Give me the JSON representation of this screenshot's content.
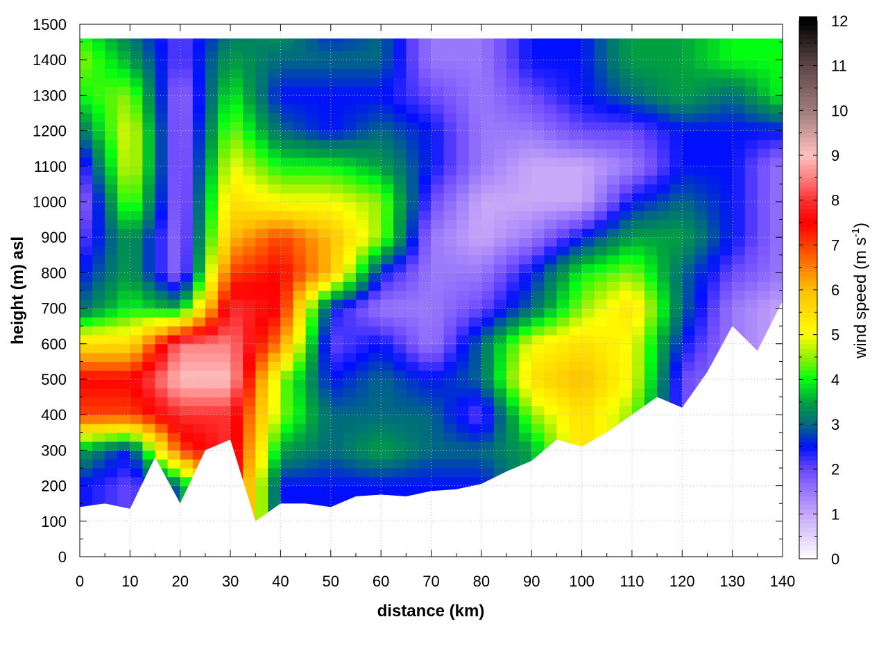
{
  "chart_data": {
    "type": "heatmap",
    "xlabel": "distance (km)",
    "ylabel": "height (m) asl",
    "colorbar_label": "wind speed (m s",
    "colorbar_label_sup": "-1",
    "colorbar_label_end": ")",
    "xlim": [
      0,
      140
    ],
    "ylim": [
      0,
      1500
    ],
    "clim": [
      0,
      12
    ],
    "grid": true,
    "x_ticks": [
      "0",
      "10",
      "20",
      "30",
      "40",
      "50",
      "60",
      "70",
      "80",
      "90",
      "100",
      "110",
      "120",
      "130",
      "140"
    ],
    "y_ticks": [
      "0",
      "100",
      "200",
      "300",
      "400",
      "500",
      "600",
      "700",
      "800",
      "900",
      "1000",
      "1100",
      "1200",
      "1300",
      "1400",
      "1500"
    ],
    "c_ticks": [
      "0",
      "1",
      "2",
      "3",
      "4",
      "5",
      "6",
      "7",
      "8",
      "9",
      "10",
      "11",
      "12"
    ],
    "colormap": [
      [
        0,
        "#ffffff"
      ],
      [
        1,
        "#c8a8f8"
      ],
      [
        2,
        "#6a48ff"
      ],
      [
        2.5,
        "#0010ff"
      ],
      [
        3,
        "#006a80"
      ],
      [
        3.5,
        "#00a040"
      ],
      [
        4,
        "#00ff10"
      ],
      [
        4.5,
        "#90f000"
      ],
      [
        5,
        "#ffff00"
      ],
      [
        6,
        "#ffc000"
      ],
      [
        6.5,
        "#ff8000"
      ],
      [
        7,
        "#ff4000"
      ],
      [
        7.5,
        "#ff0000"
      ],
      [
        8,
        "#ff3030"
      ],
      [
        8.5,
        "#ff8080"
      ],
      [
        9,
        "#ffc0c0"
      ],
      [
        10,
        "#a07c7c"
      ],
      [
        11,
        "#604646"
      ],
      [
        12,
        "#000000"
      ]
    ],
    "x": [
      0,
      10,
      20,
      30,
      40,
      50,
      60,
      70,
      80,
      90,
      100,
      110,
      120,
      130,
      140
    ],
    "y": [
      0,
      100,
      200,
      300,
      400,
      500,
      600,
      700,
      800,
      900,
      1000,
      1100,
      1200,
      1300,
      1400,
      1500
    ],
    "wind_speed": [
      [
        null,
        null,
        2.5,
        3.5,
        7,
        7.5,
        5.5,
        3,
        2.5,
        2,
        1.5,
        2,
        3,
        4,
        4.5,
        4
      ],
      [
        null,
        null,
        2,
        2.5,
        7,
        7.5,
        5.5,
        4,
        3.5,
        3.5,
        4.5,
        5,
        5,
        4.5,
        3.5,
        3
      ],
      [
        null,
        null,
        3,
        7,
        8,
        9,
        8.5,
        3.5,
        1.5,
        1.5,
        1.5,
        1.5,
        1.5,
        1.5,
        2,
        2
      ],
      [
        null,
        null,
        null,
        null,
        8,
        9,
        8.5,
        8,
        7,
        6,
        5.5,
        5,
        4.5,
        4,
        3.5,
        3
      ],
      [
        null,
        null,
        2.5,
        3.5,
        4.5,
        4.5,
        6.5,
        7.5,
        7.5,
        7,
        5,
        4,
        3,
        2.5,
        3,
        3.5
      ],
      [
        null,
        null,
        2.5,
        3,
        3,
        2.5,
        2,
        2.5,
        6,
        6,
        5,
        4,
        2.5,
        2.5,
        3,
        2.5
      ],
      [
        null,
        null,
        2.5,
        3.5,
        3,
        3,
        2.5,
        1.5,
        2.5,
        4.5,
        4.5,
        3.5,
        3,
        2.5,
        3,
        3
      ],
      [
        null,
        null,
        2.5,
        3,
        3,
        2.5,
        1.5,
        1.5,
        1.5,
        1.5,
        2,
        2.5,
        2.5,
        2,
        1.5,
        1.5
      ],
      [
        null,
        null,
        2.5,
        3,
        2,
        3,
        3,
        2,
        1.5,
        1,
        1,
        1.5,
        1.5,
        1.5,
        1.5,
        1.5
      ],
      [
        null,
        null,
        null,
        3.5,
        4.5,
        5.5,
        5,
        3,
        2.5,
        1.5,
        1,
        1,
        1.5,
        2,
        2.5,
        2.5
      ],
      [
        null,
        null,
        null,
        null,
        5.5,
        6,
        5.5,
        4.5,
        4,
        2.5,
        1,
        1,
        2,
        2.5,
        2.5,
        2.5
      ],
      [
        null,
        null,
        null,
        null,
        4.5,
        5,
        5,
        5.5,
        4.5,
        3.5,
        2.5,
        1.5,
        2,
        3,
        3.5,
        3.5
      ],
      [
        null,
        null,
        null,
        null,
        null,
        2,
        2.5,
        3,
        3,
        3.5,
        3,
        2.5,
        2.5,
        3.5,
        3.5,
        3.5
      ],
      [
        null,
        null,
        null,
        null,
        null,
        null,
        null,
        1.5,
        2,
        2.5,
        2.5,
        2.5,
        2.5,
        3,
        4,
        4
      ],
      [
        null,
        null,
        null,
        null,
        null,
        null,
        null,
        1,
        1.5,
        1.5,
        1.5,
        1.5,
        2.5,
        4,
        4,
        4
      ]
    ],
    "ground_x": [
      0,
      5,
      10,
      15,
      20,
      25,
      30,
      35,
      40,
      45,
      50,
      55,
      60,
      65,
      70,
      75,
      80,
      85,
      90,
      95,
      100,
      105,
      110,
      115,
      120,
      125,
      130,
      135,
      140
    ],
    "ground_height": [
      140,
      150,
      135,
      280,
      150,
      300,
      330,
      100,
      150,
      150,
      140,
      170,
      175,
      170,
      185,
      190,
      205,
      240,
      270,
      330,
      310,
      350,
      400,
      450,
      420,
      520,
      650,
      580,
      720
    ]
  }
}
